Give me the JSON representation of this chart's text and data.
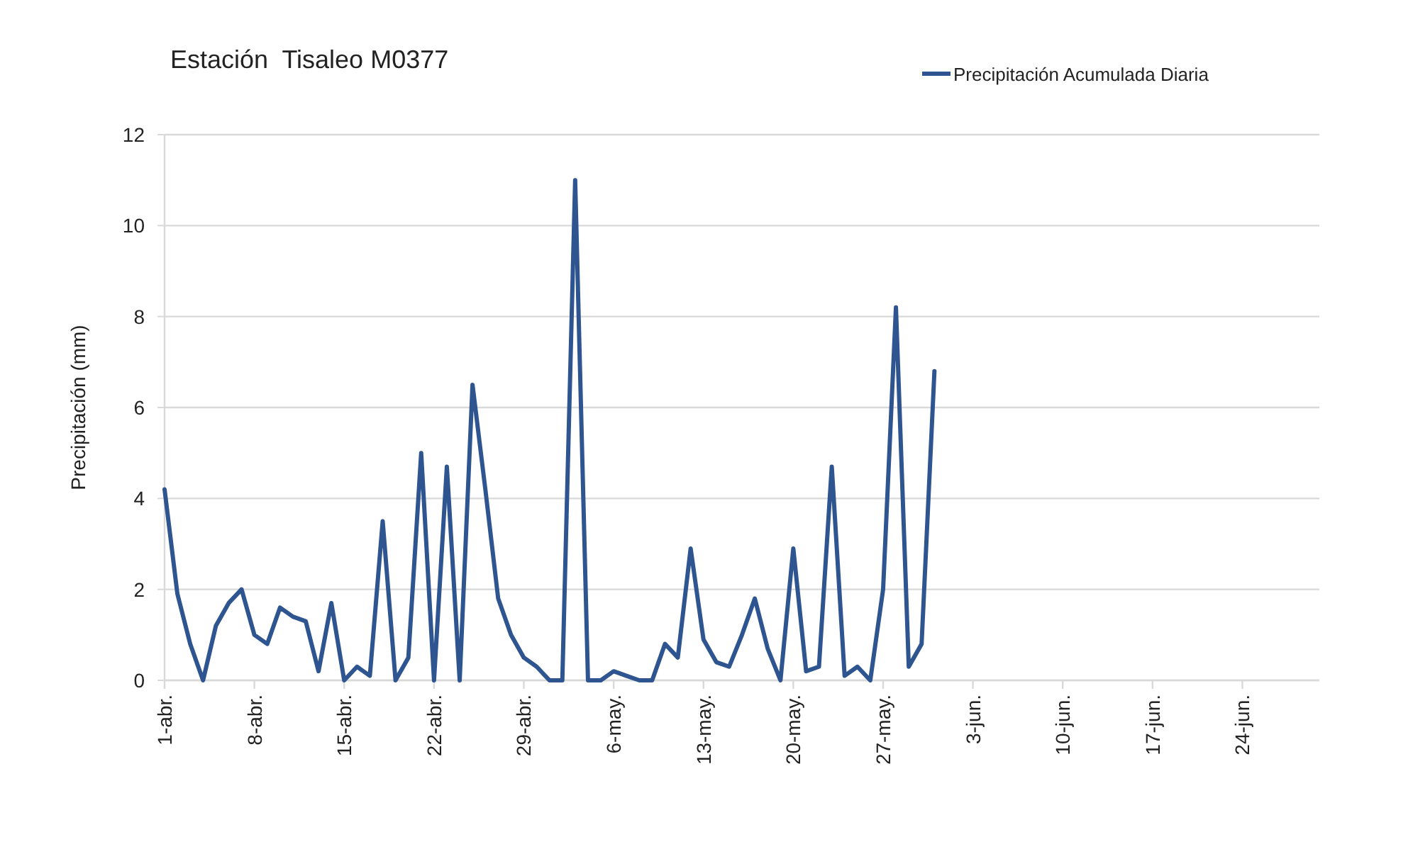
{
  "chart_data": {
    "type": "line",
    "title": "Estación  Tisaleo M0377",
    "ylabel": "Precipitación (mm)",
    "x": [
      "--04-01",
      "--04-02",
      "--04-03",
      "--04-04",
      "--04-05",
      "--04-06",
      "--04-07",
      "--04-08",
      "--04-09",
      "--04-10",
      "--04-11",
      "--04-12",
      "--04-13",
      "--04-14",
      "--04-15",
      "--04-16",
      "--04-17",
      "--04-18",
      "--04-19",
      "--04-20",
      "--04-21",
      "--04-22",
      "--04-23",
      "--04-24",
      "--04-25",
      "--04-26",
      "--04-27",
      "--04-28",
      "--04-29",
      "--04-30",
      "--05-01",
      "--05-02",
      "--05-03",
      "--05-04",
      "--05-05",
      "--05-06",
      "--05-07",
      "--05-08",
      "--05-09",
      "--05-10",
      "--05-11",
      "--05-12",
      "--05-13",
      "--05-14",
      "--05-15",
      "--05-16",
      "--05-17",
      "--05-18",
      "--05-19",
      "--05-20",
      "--05-21",
      "--05-22",
      "--05-23",
      "--05-24",
      "--05-25",
      "--05-26",
      "--05-27",
      "--05-28",
      "--05-29",
      "--05-30",
      "--05-31"
    ],
    "series": [
      {
        "name": "Precipitación Acumulada Diaria",
        "color": "#2e5590",
        "values": [
          4.2,
          1.9,
          0.8,
          0,
          1.2,
          1.7,
          2.0,
          1.0,
          0.8,
          1.6,
          1.4,
          1.3,
          0.2,
          1.7,
          0,
          0.3,
          0.1,
          3.5,
          0,
          0.5,
          5.0,
          0,
          4.7,
          0,
          6.5,
          4.2,
          1.8,
          1.0,
          0.5,
          0.3,
          0,
          0,
          11.0,
          0,
          0,
          0.2,
          0.1,
          0,
          0,
          0.8,
          0.5,
          2.9,
          0.9,
          0.4,
          0.3,
          1.0,
          1.8,
          0.7,
          0,
          2.9,
          0.2,
          0.3,
          4.7,
          0.1,
          0.3,
          0,
          2.0,
          8.2,
          0.3,
          0.8,
          6.8
        ]
      }
    ],
    "xlim": [
      "--04-01",
      "--06-30"
    ],
    "xticks": [
      {
        "value": "--04-01",
        "label": "1-abr."
      },
      {
        "value": "--04-08",
        "label": "8-abr."
      },
      {
        "value": "--04-15",
        "label": "15-abr."
      },
      {
        "value": "--04-22",
        "label": "22-abr."
      },
      {
        "value": "--04-29",
        "label": "29-abr."
      },
      {
        "value": "--05-06",
        "label": "6-may."
      },
      {
        "value": "--05-13",
        "label": "13-may."
      },
      {
        "value": "--05-20",
        "label": "20-may."
      },
      {
        "value": "--05-27",
        "label": "27-may."
      },
      {
        "value": "--06-03",
        "label": "3-jun."
      },
      {
        "value": "--06-10",
        "label": "10-jun."
      },
      {
        "value": "--06-17",
        "label": "17-jun."
      },
      {
        "value": "--06-24",
        "label": "24-jun."
      }
    ],
    "ylim": [
      0,
      12
    ],
    "yticks": [
      0,
      2,
      4,
      6,
      8,
      10,
      12
    ],
    "grid": "y",
    "legend": "top right",
    "marker": "none",
    "line_style": "solid"
  }
}
